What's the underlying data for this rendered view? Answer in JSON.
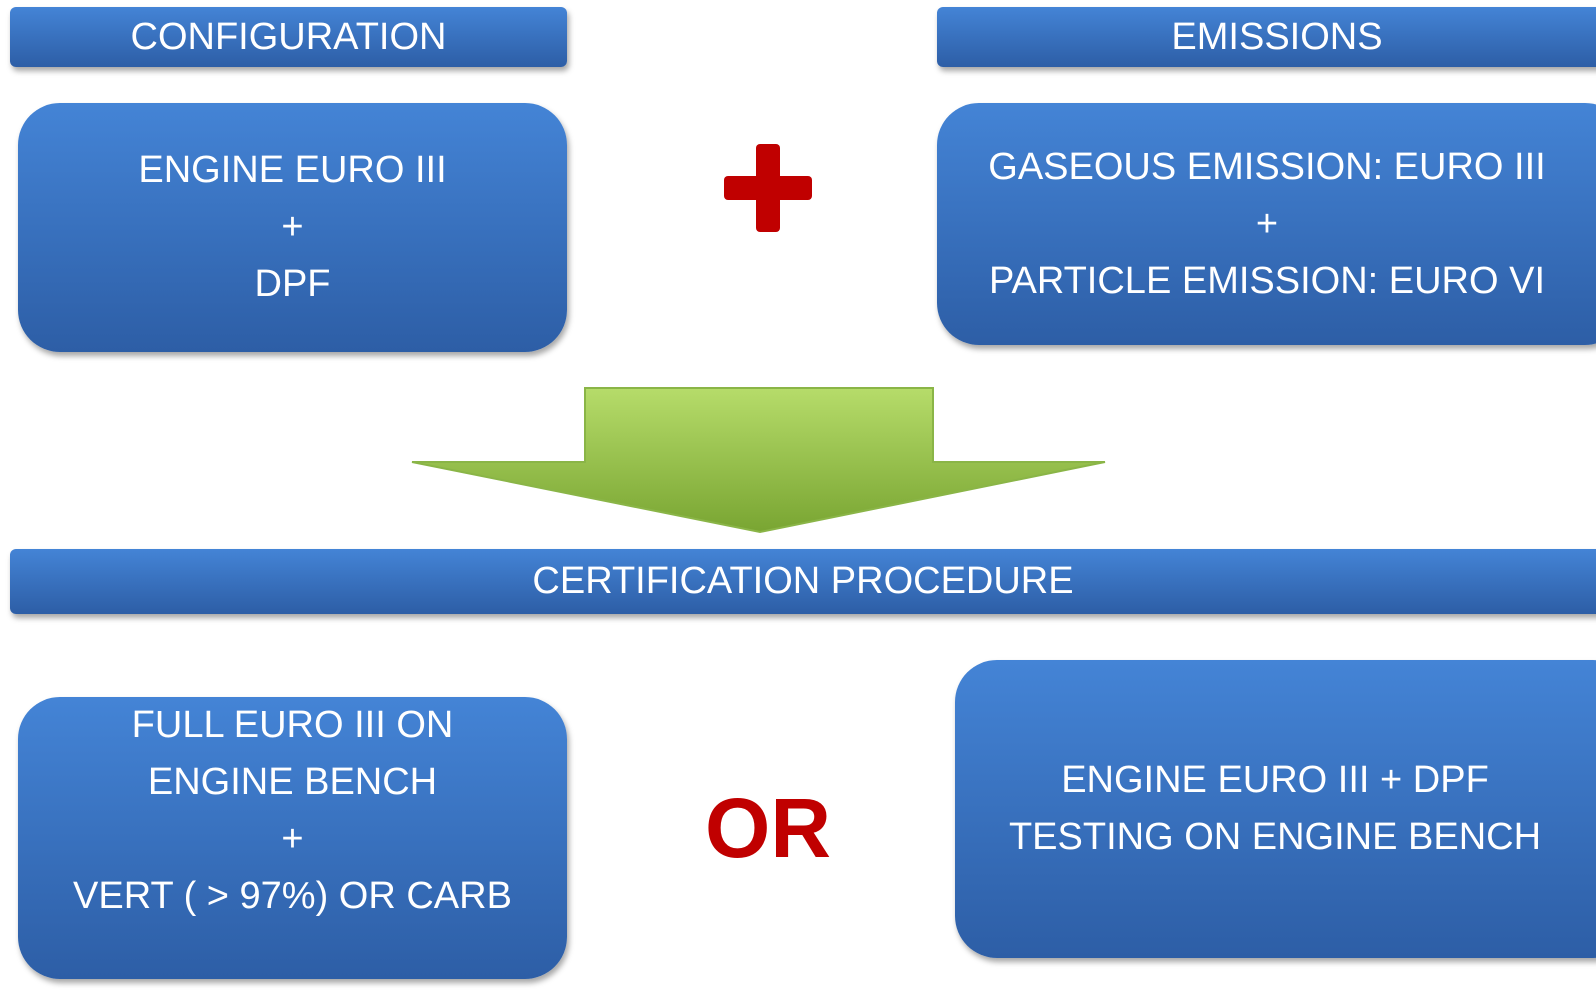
{
  "configuration": {
    "header": "CONFIGURATION",
    "lines": [
      "ENGINE EURO III",
      "+",
      "DPF"
    ]
  },
  "emissions": {
    "header": "EMISSIONS",
    "lines": [
      "GASEOUS EMISSION:  EURO III",
      "+",
      "PARTICLE EMISSION: EURO VI"
    ]
  },
  "certification": {
    "header": "CERTIFICATION PROCEDURE",
    "options": [
      {
        "lines": [
          "FULL EURO III ON",
          "ENGINE BENCH",
          "+",
          "VERT ( > 97%) OR CARB"
        ]
      },
      {
        "lines": [
          "ENGINE EURO III + DPF",
          "TESTING ON ENGINE BENCH"
        ]
      }
    ],
    "separator": "OR"
  }
}
